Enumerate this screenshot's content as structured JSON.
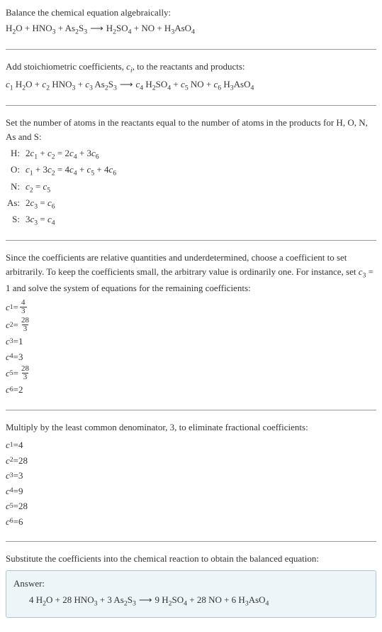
{
  "section1": {
    "title": "Balance the chemical equation algebraically:",
    "equation": "H<sub>2</sub>O + HNO<sub>3</sub> + As<sub>2</sub>S<sub>3</sub> ⟶ H<sub>2</sub>SO<sub>4</sub> + NO + H<sub>3</sub>AsO<sub>4</sub>"
  },
  "section2": {
    "title_part1": "Add stoichiometric coefficients, ",
    "title_var": "c",
    "title_sub": "i",
    "title_part2": ", to the reactants and products:",
    "equation_parts": {
      "c1": "c",
      "s1": "1",
      "t1": " H",
      "s1b": "2",
      "t1b": "O + ",
      "c2": "c",
      "s2": "2",
      "t2": " HNO",
      "s2b": "3",
      "t2b": " + ",
      "c3": "c",
      "s3": "3",
      "t3": " As",
      "s3b": "2",
      "t3c": "S",
      "s3c": "3",
      "arrow": " ⟶ ",
      "c4": "c",
      "s4": "4",
      "t4": " H",
      "s4b": "2",
      "t4c": "SO",
      "s4c": "4",
      "t4d": " + ",
      "c5": "c",
      "s5": "5",
      "t5": " NO + ",
      "c6": "c",
      "s6": "6",
      "t6": " H",
      "s6b": "3",
      "t6c": "AsO",
      "s6c": "4"
    }
  },
  "section3": {
    "title": "Set the number of atoms in the reactants equal to the number of atoms in the products for H, O, N, As and S:",
    "rows": [
      {
        "label": "H:",
        "lhs_a": "2",
        "c1": "c",
        "s1": "1",
        "plus1": " + ",
        "c2": "c",
        "s2": "2",
        "eq": " = ",
        "rhs_a": "2",
        "c3": "c",
        "s3": "4",
        "plus2": " + ",
        "rhs_b": "3",
        "c4": "c",
        "s4": "6"
      },
      {
        "label": "O:",
        "lhs_a": "",
        "c1": "c",
        "s1": "1",
        "plus1": " + ",
        "lhs_b": "3",
        "c2": "c",
        "s2": "2",
        "eq": " = ",
        "rhs_a": "4",
        "c3": "c",
        "s3": "4",
        "plus2": " + ",
        "c4": "c",
        "s4": "5",
        "plus3": " + ",
        "rhs_c": "4",
        "c5": "c",
        "s5": "6"
      },
      {
        "label": "N:",
        "c1": "c",
        "s1": "2",
        "eq": " = ",
        "c2": "c",
        "s2": "5"
      },
      {
        "label": "As:",
        "lhs_a": "2",
        "c1": "c",
        "s1": "3",
        "eq": " = ",
        "c2": "c",
        "s2": "6"
      },
      {
        "label": "S:",
        "lhs_a": "3",
        "c1": "c",
        "s1": "3",
        "eq": " = ",
        "c2": "c",
        "s2": "4"
      }
    ]
  },
  "section4": {
    "title_p1": "Since the coefficients are relative quantities and underdetermined, choose a coefficient to set arbitrarily. To keep the coefficients small, the arbitrary value is ordinarily one. For instance, set ",
    "title_var": "c",
    "title_sub": "3",
    "title_p2": " = 1 and solve the system of equations for the remaining coefficients:",
    "coeffs": [
      {
        "var": "c",
        "sub": "1",
        "eq": " = ",
        "frac_num": "4",
        "frac_den": "3"
      },
      {
        "var": "c",
        "sub": "2",
        "eq": " = ",
        "frac_num": "28",
        "frac_den": "3"
      },
      {
        "var": "c",
        "sub": "3",
        "eq": " = ",
        "val": "1"
      },
      {
        "var": "c",
        "sub": "4",
        "eq": " = ",
        "val": "3"
      },
      {
        "var": "c",
        "sub": "5",
        "eq": " = ",
        "frac_num": "28",
        "frac_den": "3"
      },
      {
        "var": "c",
        "sub": "6",
        "eq": " = ",
        "val": "2"
      }
    ]
  },
  "section5": {
    "title": "Multiply by the least common denominator, 3, to eliminate fractional coefficients:",
    "coeffs": [
      {
        "var": "c",
        "sub": "1",
        "eq": " = ",
        "val": "4"
      },
      {
        "var": "c",
        "sub": "2",
        "eq": " = ",
        "val": "28"
      },
      {
        "var": "c",
        "sub": "3",
        "eq": " = ",
        "val": "3"
      },
      {
        "var": "c",
        "sub": "4",
        "eq": " = ",
        "val": "9"
      },
      {
        "var": "c",
        "sub": "5",
        "eq": " = ",
        "val": "28"
      },
      {
        "var": "c",
        "sub": "6",
        "eq": " = ",
        "val": "6"
      }
    ]
  },
  "section6": {
    "title": "Substitute the coefficients into the chemical reaction to obtain the balanced equation:",
    "answer_label": "Answer:",
    "answer": {
      "p1": "4 H",
      "s1": "2",
      "p2": "O + 28 HNO",
      "s2": "3",
      "p3": " + 3 As",
      "s3": "2",
      "p4": "S",
      "s4": "3",
      "arrow": " ⟶ ",
      "p5": "9 H",
      "s5": "2",
      "p6": "SO",
      "s6": "4",
      "p7": " + 28 NO + 6 H",
      "s7": "3",
      "p8": "AsO",
      "s8": "4"
    }
  }
}
